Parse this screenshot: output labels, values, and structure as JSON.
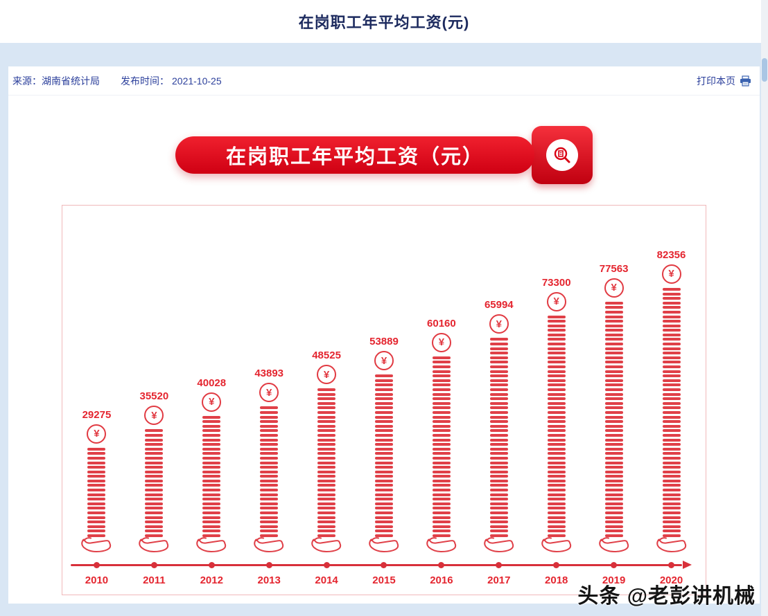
{
  "page_title": "在岗职工年平均工资(元)",
  "meta": {
    "source_label": "来源：",
    "source_value": "湖南省统计局",
    "publish_label": "发布时间：",
    "publish_value": "2021-10-25",
    "print_label": "打印本页"
  },
  "banner": {
    "title": "在岗职工年平均工资（元）"
  },
  "watermark": "头条 @老彭讲机械",
  "colors": {
    "accent_red": "#e4252f",
    "banner_red": "#d90013",
    "meta_blue": "#2b3f9b",
    "title_navy": "#1c2a5e"
  },
  "chart_data": {
    "type": "bar",
    "title": "在岗职工年平均工资（元）",
    "categories": [
      "2010",
      "2011",
      "2012",
      "2013",
      "2014",
      "2015",
      "2016",
      "2017",
      "2018",
      "2019",
      "2020"
    ],
    "values": [
      29275,
      35520,
      40028,
      43893,
      48525,
      53889,
      60160,
      65994,
      73300,
      77563,
      82356
    ],
    "unit": "元",
    "currency_symbol": "¥",
    "ylim": [
      0,
      90000
    ],
    "bar_style": "coin-stack-on-hand",
    "value_labels": "above-bars",
    "x_axis_style": "red line with dots per category and right arrow",
    "legend": "none",
    "grid": false
  }
}
